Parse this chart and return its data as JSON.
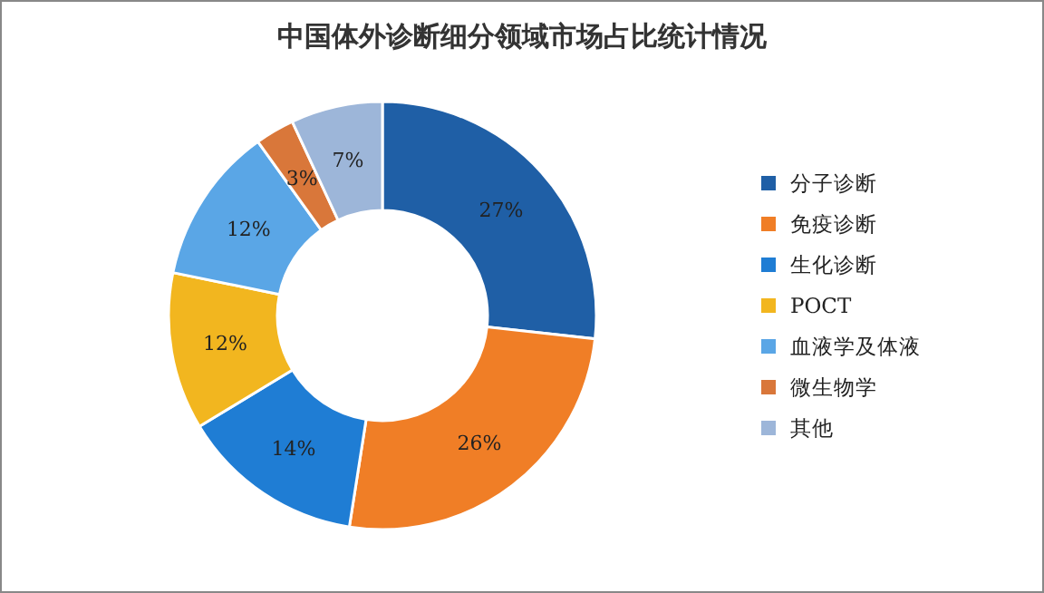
{
  "chart_data": {
    "type": "donut",
    "title": "中国体外诊断细分领域市场占比统计情况",
    "categories": [
      "分子诊断",
      "免疫诊断",
      "生化诊断",
      "POCT",
      "血液学及体液",
      "微生物学",
      "其他"
    ],
    "values": [
      27,
      26,
      14,
      12,
      12,
      3,
      7
    ],
    "colors": [
      "#1f5fa6",
      "#f07e26",
      "#1f7dd4",
      "#f2b61f",
      "#5aa6e6",
      "#d9773a",
      "#9db6d9"
    ],
    "value_labels": [
      "27%",
      "26%",
      "14%",
      "12%",
      "12%",
      "3%",
      "7%"
    ],
    "legend": "right"
  }
}
